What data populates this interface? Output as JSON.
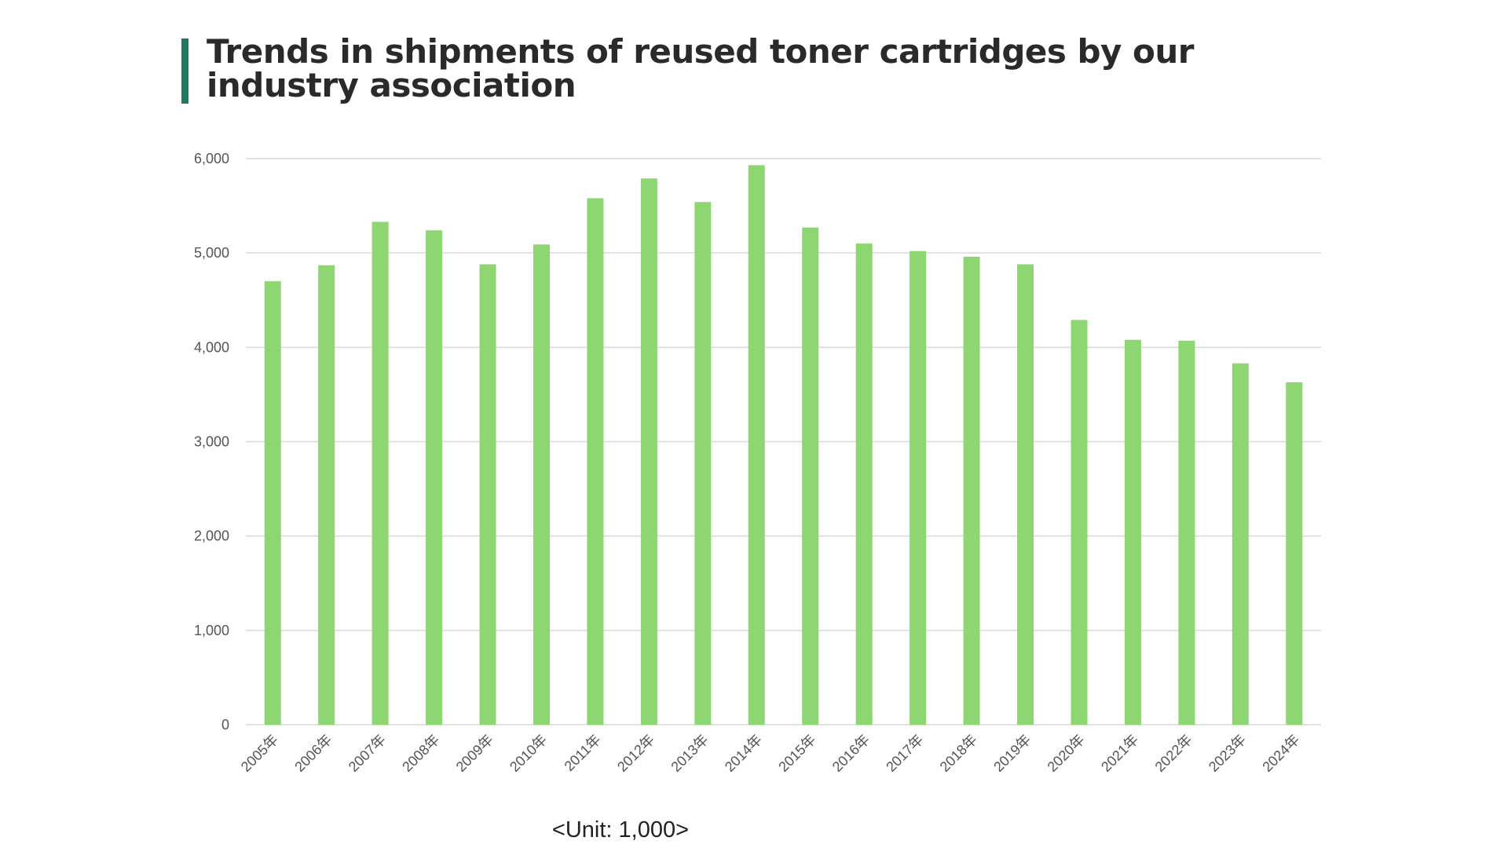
{
  "chart_data": {
    "type": "bar",
    "title": "Trends in shipments of reused toner cartridges by our industry association",
    "unit_note": "<Unit: 1,000>",
    "categories": [
      "2005年",
      "2006年",
      "2007年",
      "2008年",
      "2009年",
      "2010年",
      "2011年",
      "2012年",
      "2013年",
      "2014年",
      "2015年",
      "2016年",
      "2017年",
      "2018年",
      "2019年",
      "2020年",
      "2021年",
      "2022年",
      "2023年",
      "2024年"
    ],
    "values": [
      4700,
      4870,
      5330,
      5240,
      4880,
      5090,
      5580,
      5790,
      5540,
      5930,
      5270,
      5100,
      5020,
      4960,
      4880,
      4290,
      4080,
      4070,
      3830,
      3630
    ],
    "ylim": [
      0,
      6000
    ],
    "yticks": [
      0,
      1000,
      2000,
      3000,
      4000,
      5000,
      6000
    ],
    "ytick_labels": [
      "0",
      "1,000",
      "2,000",
      "3,000",
      "4,000",
      "5,000",
      "6,000"
    ],
    "grid": true,
    "legend": "none",
    "colors": {
      "bar": "#8dd672",
      "grid": "#d9d9d9",
      "accent": "#1f7a63"
    }
  }
}
